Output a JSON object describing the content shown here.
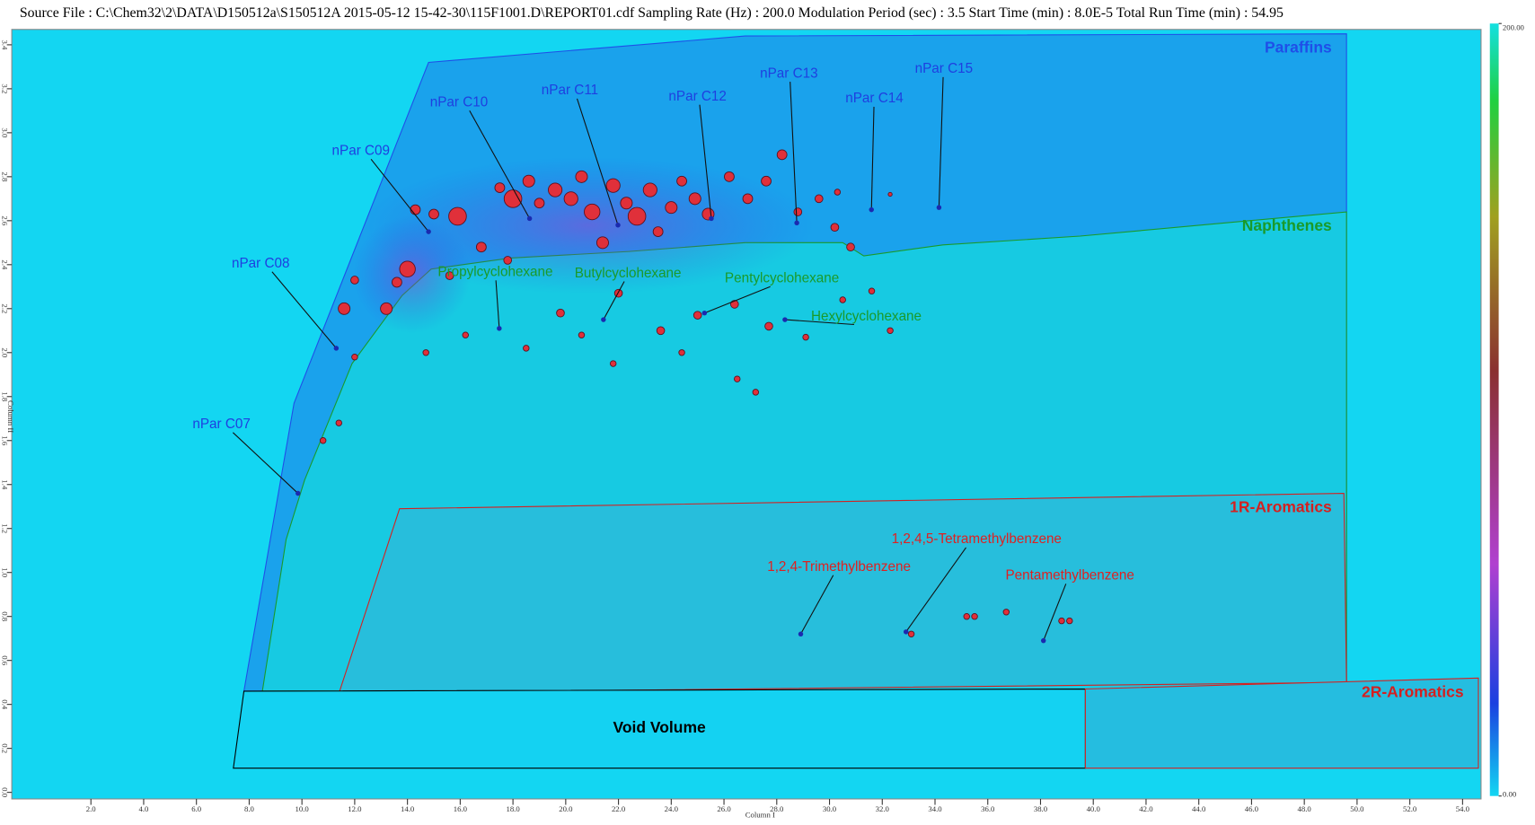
{
  "chart_data": {
    "type": "scatter",
    "title": "Source File : C:\\Chem32\\2\\DATA\\D150512a\\S150512A 2015-05-12 15-42-30\\115F1001.D\\REPORT01.cdf  Sampling Rate (Hz) : 200.0  Modulation Period (sec) : 3.5  Start Time (min) : 8.0E-5  Total Run Time (min) : 54.95",
    "x_label": "Column I",
    "y_label": "Column II",
    "xlim": [
      -1.0,
      54.7
    ],
    "ylim": [
      -0.03,
      3.47
    ],
    "xticks": [
      {
        "value": 2,
        "label": "2.0"
      },
      {
        "value": 4,
        "label": "4.0"
      },
      {
        "value": 6,
        "label": "6.0"
      },
      {
        "value": 8,
        "label": "8.0"
      },
      {
        "value": 10,
        "label": "10.0"
      },
      {
        "value": 12,
        "label": "12.0"
      },
      {
        "value": 14,
        "label": "14.0"
      },
      {
        "value": 16,
        "label": "16.0"
      },
      {
        "value": 18,
        "label": "18.0"
      },
      {
        "value": 20,
        "label": "20.0"
      },
      {
        "value": 22,
        "label": "22.0"
      },
      {
        "value": 24,
        "label": "24.0"
      },
      {
        "value": 26,
        "label": "26.0"
      },
      {
        "value": 28,
        "label": "28.0"
      },
      {
        "value": 30,
        "label": "30.0"
      },
      {
        "value": 32,
        "label": "32.0"
      },
      {
        "value": 34,
        "label": "34.0"
      },
      {
        "value": 36,
        "label": "36.0"
      },
      {
        "value": 38,
        "label": "38.0"
      },
      {
        "value": 40,
        "label": "40.0"
      },
      {
        "value": 42,
        "label": "42.0"
      },
      {
        "value": 44,
        "label": "44.0"
      },
      {
        "value": 46,
        "label": "46.0"
      },
      {
        "value": 48,
        "label": "48.0"
      },
      {
        "value": 50,
        "label": "50.0"
      },
      {
        "value": 52,
        "label": "52.0"
      },
      {
        "value": 54,
        "label": "54.0"
      }
    ],
    "yticks": [
      {
        "value": 0,
        "label": "0.0"
      },
      {
        "value": 0.2,
        "label": "0.2"
      },
      {
        "value": 0.4,
        "label": "0.4"
      },
      {
        "value": 0.6,
        "label": "0.6"
      },
      {
        "value": 0.8,
        "label": "0.8"
      },
      {
        "value": 1,
        "label": "1.0"
      },
      {
        "value": 1.2,
        "label": "1.2"
      },
      {
        "value": 1.4,
        "label": "1.4"
      },
      {
        "value": 1.6,
        "label": "1.6"
      },
      {
        "value": 1.8,
        "label": "1.8"
      },
      {
        "value": 2,
        "label": "2.0"
      },
      {
        "value": 2.2,
        "label": "2.2"
      },
      {
        "value": 2.4,
        "label": "2.4"
      },
      {
        "value": 2.6,
        "label": "2.6"
      },
      {
        "value": 2.8,
        "label": "2.8"
      },
      {
        "value": 3,
        "label": "3.0"
      },
      {
        "value": 3.2,
        "label": "3.2"
      },
      {
        "value": 3.4,
        "label": "3.4"
      }
    ],
    "colorbar": {
      "min": {
        "value": 0,
        "label": "0.00"
      },
      "max": {
        "value": 200,
        "label": "200.00"
      }
    },
    "regions": [
      {
        "name": "Paraffins",
        "color": "#1f4fe8",
        "fill": "#1aa2ec",
        "x": [
          7.8,
          9.7,
          14.8,
          26.8,
          49.6,
          49.6
        ],
        "y": [
          0.46,
          1.77,
          3.32,
          3.44,
          3.45,
          0.46
        ]
      },
      {
        "name": "Naphthenes",
        "color": "#1a9a2a",
        "fill": "#17cae2",
        "x": [
          8.5,
          9.4,
          10.1,
          11.9,
          13.8,
          14.9,
          17.9,
          22.4,
          26.8,
          30.5,
          31.3,
          34.3,
          39.5,
          49.6,
          49.6
        ],
        "y": [
          0.46,
          1.15,
          1.42,
          1.95,
          2.26,
          2.38,
          2.43,
          2.46,
          2.5,
          2.5,
          2.44,
          2.49,
          2.53,
          2.64,
          0.46
        ]
      },
      {
        "name": "1R-Aromatics",
        "color": "#d42020",
        "fill": "#27bedc",
        "x": [
          11.4,
          13.7,
          49.5,
          49.6
        ],
        "y": [
          0.45,
          1.29,
          1.36,
          0.5
        ]
      },
      {
        "name": "Void Volume",
        "color": "#000000",
        "fill": "#14d2f2",
        "x": [
          7.8,
          39.7,
          39.7,
          7.4
        ],
        "y": [
          0.46,
          0.47,
          0.11,
          0.11
        ]
      },
      {
        "name": "2R-Aromatics",
        "color": "#d42020",
        "fill": "#25bde0",
        "x": [
          39.7,
          54.6,
          54.6,
          39.7
        ],
        "y": [
          0.47,
          0.52,
          0.11,
          0.11
        ]
      }
    ],
    "compounds": [
      {
        "name": "nPar C07",
        "color": "#1f3fe0",
        "x": 9.85,
        "y": 1.36
      },
      {
        "name": "nPar C08",
        "color": "#1f3fe0",
        "x": 11.3,
        "y": 2.02
      },
      {
        "name": "nPar C09",
        "color": "#1f3fe0",
        "x": 14.8,
        "y": 2.55
      },
      {
        "name": "nPar C10",
        "color": "#1f3fe0",
        "x": 18.63,
        "y": 2.61
      },
      {
        "name": "nPar C11",
        "color": "#1f3fe0",
        "x": 21.98,
        "y": 2.58
      },
      {
        "name": "nPar C12",
        "color": "#1f3fe0",
        "x": 25.52,
        "y": 2.61
      },
      {
        "name": "nPar C13",
        "color": "#1f3fe0",
        "x": 28.76,
        "y": 2.59
      },
      {
        "name": "nPar C14",
        "color": "#1f3fe0",
        "x": 31.59,
        "y": 2.65
      },
      {
        "name": "nPar C15",
        "color": "#1f3fe0",
        "x": 34.15,
        "y": 2.66
      },
      {
        "name": "Propylcyclohexane",
        "color": "#1a9a2a",
        "x": 17.48,
        "y": 2.11
      },
      {
        "name": "Butylcyclohexane",
        "color": "#1a9a2a",
        "x": 21.43,
        "y": 2.15
      },
      {
        "name": "Pentylcyclohexane",
        "color": "#1a9a2a",
        "x": 25.26,
        "y": 2.18
      },
      {
        "name": "Hexylcyclohexane",
        "color": "#1a9a2a",
        "x": 28.31,
        "y": 2.15
      },
      {
        "name": "1,2,4-Trimethylbenzene",
        "color": "#e02020",
        "x": 28.91,
        "y": 0.72
      },
      {
        "name": "1,2,4,5-Tetramethylbenzene",
        "color": "#e02020",
        "x": 32.9,
        "y": 0.73
      },
      {
        "name": "Pentamethylbenzene",
        "color": "#e02020",
        "x": 38.11,
        "y": 0.69
      }
    ],
    "color": "#e0303a",
    "x": [
      13.2,
      13.6,
      14.0,
      14.3,
      15.0,
      15.9,
      16.8,
      17.5,
      18.0,
      18.6,
      19.0,
      19.6,
      20.2,
      20.6,
      21.0,
      21.4,
      21.8,
      22.3,
      22.7,
      23.2,
      23.5,
      24.0,
      24.4,
      24.9,
      25.4,
      26.2,
      26.9,
      27.6,
      28.2,
      28.8,
      29.6,
      30.2,
      30.8,
      12.0,
      11.6,
      15.6,
      17.8,
      19.8,
      22.0,
      23.6,
      25.0,
      26.4,
      27.7,
      29.1,
      30.5,
      24.4,
      26.5,
      27.2,
      21.8,
      14.7,
      16.2,
      18.5,
      20.6,
      31.6,
      32.3,
      11.4,
      10.8,
      12.0,
      35.2,
      35.5,
      36.7,
      38.8,
      39.1,
      33.1,
      30.3,
      32.3
    ],
    "values": [
      2.2,
      2.32,
      2.38,
      2.65,
      2.63,
      2.62,
      2.48,
      2.75,
      2.7,
      2.78,
      2.68,
      2.74,
      2.7,
      2.8,
      2.64,
      2.5,
      2.76,
      2.68,
      2.62,
      2.74,
      2.55,
      2.66,
      2.78,
      2.7,
      2.63,
      2.8,
      2.7,
      2.78,
      2.9,
      2.64,
      2.7,
      2.57,
      2.48,
      2.33,
      2.2,
      2.35,
      2.42,
      2.18,
      2.27,
      2.1,
      2.17,
      2.22,
      2.12,
      2.07,
      2.24,
      2.0,
      1.88,
      1.82,
      1.95,
      2.0,
      2.08,
      2.02,
      2.08,
      2.28,
      2.1,
      1.68,
      1.6,
      1.98,
      0.8,
      0.8,
      0.82,
      0.78,
      0.78,
      0.72,
      2.73,
      2.72
    ],
    "sizes": [
      6,
      5,
      8,
      5,
      5,
      9,
      5,
      5,
      9,
      6,
      5,
      7,
      7,
      6,
      8,
      6,
      7,
      6,
      9,
      7,
      5,
      6,
      5,
      6,
      6,
      5,
      5,
      5,
      5,
      4,
      4,
      4,
      4,
      4,
      6,
      4,
      4,
      4,
      4,
      4,
      4,
      4,
      4,
      3,
      3,
      3,
      3,
      3,
      3,
      3,
      3,
      3,
      3,
      3,
      3,
      3,
      3,
      3,
      3,
      3,
      3,
      3,
      3,
      3,
      3,
      2
    ]
  }
}
